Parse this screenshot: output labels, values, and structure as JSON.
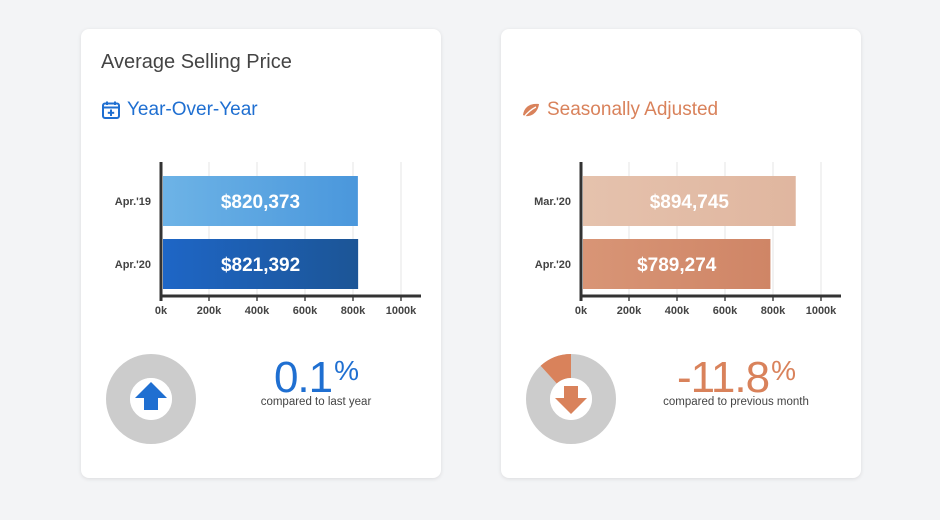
{
  "left_card": {
    "title": "Average Selling Price",
    "subtitle": "Year-Over-Year",
    "accent": "#1f6fd1",
    "icon": "calendar-plus-icon",
    "change": {
      "value": "0.1",
      "pct": "%",
      "caption": "compared to last year",
      "direction": "up",
      "fraction": 0.001
    }
  },
  "right_card": {
    "title": "",
    "subtitle": "Seasonally Adjusted",
    "accent": "#d9825b",
    "icon": "leaf-icon",
    "change": {
      "value": "-11.8",
      "pct": "%",
      "caption": "compared to previous month",
      "direction": "down",
      "fraction": 0.118
    }
  },
  "chart_data": [
    {
      "type": "bar",
      "orientation": "horizontal",
      "categories": [
        "Apr.'19",
        "Apr.'20"
      ],
      "values": [
        820373,
        821392
      ],
      "value_labels": [
        "$820,373",
        "$821,392"
      ],
      "colors": [
        [
          "#6db3e6",
          "#4a97dc"
        ],
        [
          "#1e66c6",
          "#1c5596"
        ]
      ],
      "xticks": [
        "0k",
        "200k",
        "400k",
        "600k",
        "800k",
        "1000k"
      ],
      "xlim": [
        0,
        1000000
      ],
      "grid": true
    },
    {
      "type": "bar",
      "orientation": "horizontal",
      "categories": [
        "Mar.'20",
        "Apr.'20"
      ],
      "values": [
        894745,
        789274
      ],
      "value_labels": [
        "$894,745",
        "$789,274"
      ],
      "colors": [
        [
          "#e5c2ad",
          "#e0b69f"
        ],
        [
          "#d89576",
          "#cf8566"
        ]
      ],
      "xticks": [
        "0k",
        "200k",
        "400k",
        "600k",
        "800k",
        "1000k"
      ],
      "xlim": [
        0,
        1000000
      ],
      "grid": true
    }
  ]
}
